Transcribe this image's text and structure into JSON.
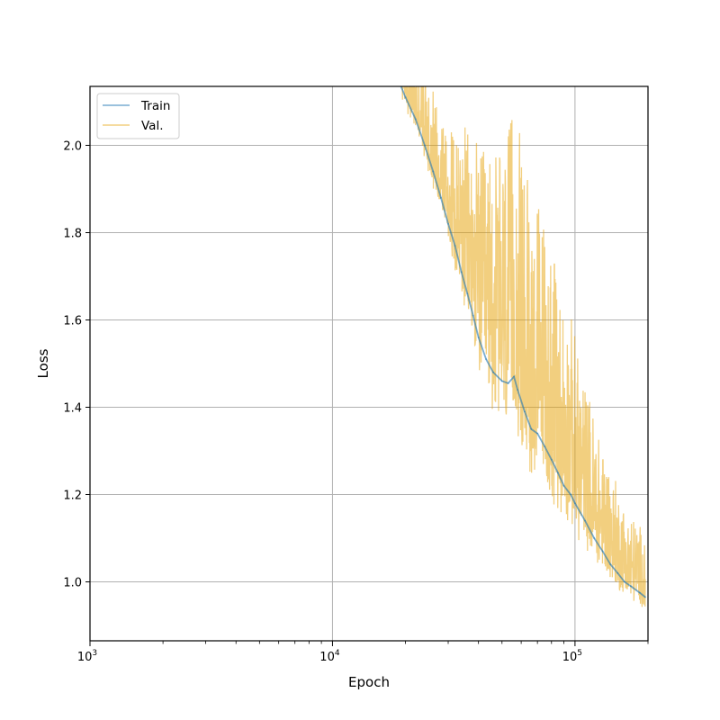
{
  "chart_data": {
    "type": "line",
    "xlabel": "Epoch",
    "ylabel": "Loss",
    "xscale": "log",
    "xlim": [
      1000,
      200000
    ],
    "ylim": [
      0.865,
      2.135
    ],
    "x_ticks": [
      {
        "value": 1000,
        "base": "10",
        "exp": "3"
      },
      {
        "value": 10000,
        "base": "10",
        "exp": "4"
      },
      {
        "value": 100000,
        "base": "10",
        "exp": "5"
      }
    ],
    "y_ticks": [
      1.0,
      1.2,
      1.4,
      1.6,
      1.8,
      2.0
    ],
    "y_tick_labels": [
      "1.0",
      "1.2",
      "1.4",
      "1.6",
      "1.8",
      "2.0"
    ],
    "grid": true,
    "legend_position": "top-left",
    "series": [
      {
        "name": "Train",
        "color": "#1f77b4",
        "opacity": 0.6,
        "points": [
          [
            19000,
            2.14
          ],
          [
            20000,
            2.11
          ],
          [
            22000,
            2.06
          ],
          [
            24000,
            2.0
          ],
          [
            26000,
            1.94
          ],
          [
            28000,
            1.88
          ],
          [
            30000,
            1.82
          ],
          [
            32000,
            1.77
          ],
          [
            34000,
            1.71
          ],
          [
            36000,
            1.66
          ],
          [
            38000,
            1.61
          ],
          [
            40000,
            1.56
          ],
          [
            43000,
            1.51
          ],
          [
            46000,
            1.48
          ],
          [
            50000,
            1.46
          ],
          [
            53000,
            1.455
          ],
          [
            56000,
            1.47
          ],
          [
            58000,
            1.44
          ],
          [
            62000,
            1.39
          ],
          [
            66000,
            1.35
          ],
          [
            70000,
            1.34
          ],
          [
            75000,
            1.31
          ],
          [
            80000,
            1.28
          ],
          [
            85000,
            1.25
          ],
          [
            90000,
            1.22
          ],
          [
            96000,
            1.2
          ],
          [
            100000,
            1.18
          ],
          [
            110000,
            1.14
          ],
          [
            120000,
            1.1
          ],
          [
            130000,
            1.07
          ],
          [
            140000,
            1.04
          ],
          [
            150000,
            1.02
          ],
          [
            160000,
            1.0
          ],
          [
            170000,
            0.99
          ],
          [
            185000,
            0.975
          ],
          [
            195000,
            0.965
          ]
        ]
      },
      {
        "name": "Val.",
        "color": "#e69f00",
        "opacity": 0.5,
        "noise_profile": [
          [
            19000,
            0.06
          ],
          [
            30000,
            0.12
          ],
          [
            40000,
            0.22
          ],
          [
            55000,
            0.3
          ],
          [
            70000,
            0.28
          ],
          [
            90000,
            0.22
          ],
          [
            120000,
            0.14
          ],
          [
            160000,
            0.09
          ],
          [
            200000,
            0.07
          ]
        ]
      }
    ]
  }
}
